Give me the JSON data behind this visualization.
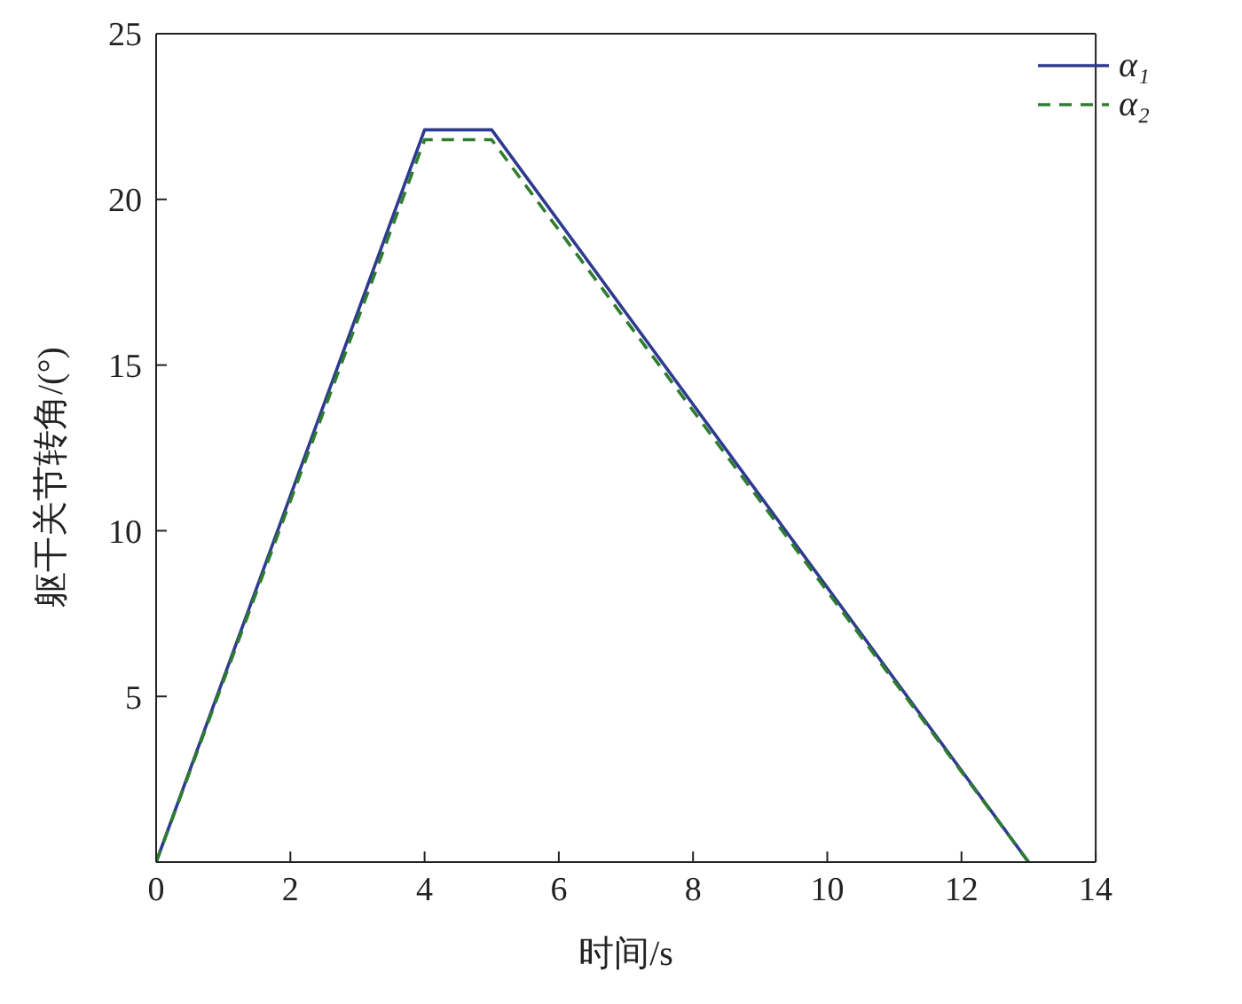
{
  "chart_data": {
    "type": "line",
    "xlabel": "时间/s",
    "ylabel": "躯干关节转角/(°)",
    "xlim": [
      0,
      14
    ],
    "xticks": [
      0,
      2,
      4,
      6,
      8,
      10,
      12,
      14
    ],
    "ylim": [
      0,
      25
    ],
    "yticks": [
      {
        "value": 0,
        "label": null
      },
      5,
      10,
      15,
      20,
      25
    ],
    "legend": "top right",
    "marker": "none",
    "series": [
      {
        "name": "α₁",
        "color": "#2e3a8f",
        "line_style": "solid",
        "x": [
          0,
          4,
          5,
          13
        ],
        "values": [
          0,
          22.1,
          22.1,
          0
        ]
      },
      {
        "name": "α₂",
        "color": "#2e7d2e",
        "line_style": "dashed",
        "x": [
          0,
          4,
          5,
          13
        ],
        "values": [
          0,
          21.8,
          21.8,
          0
        ]
      }
    ]
  }
}
